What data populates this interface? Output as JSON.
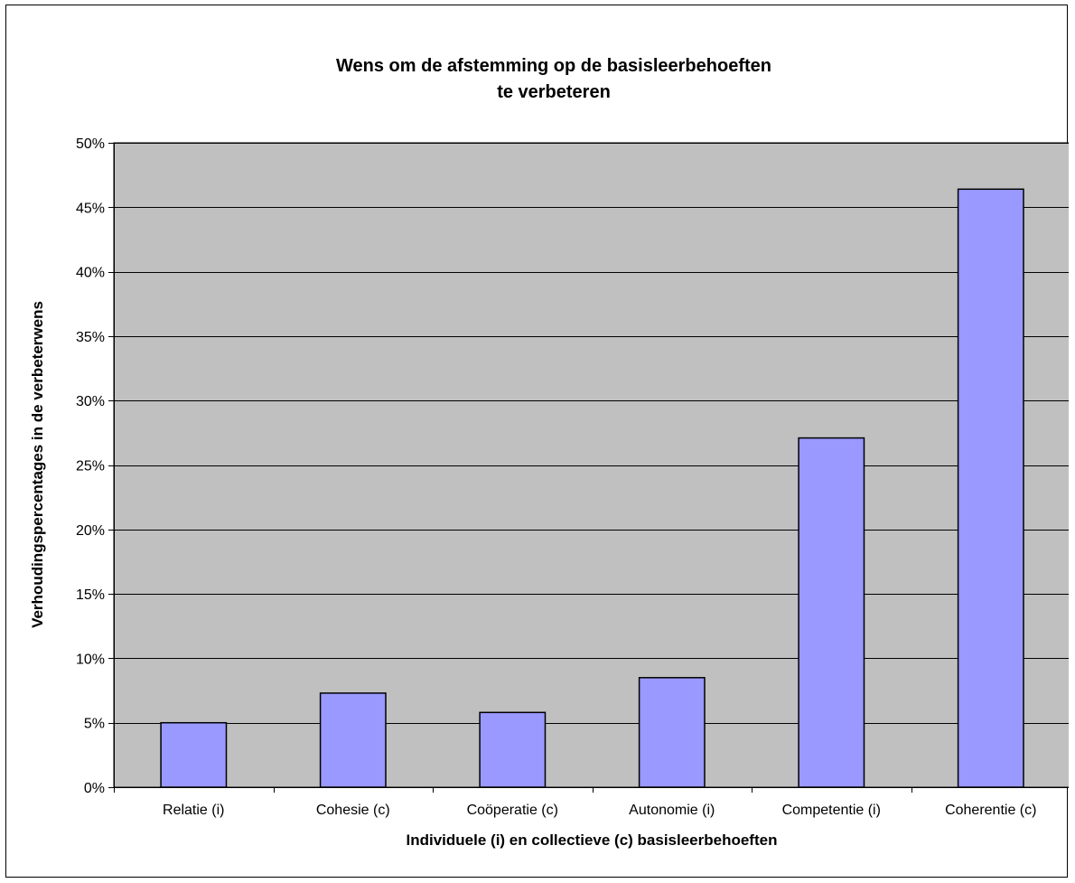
{
  "chart_data": {
    "type": "bar",
    "title_lines": [
      "Wens om de afstemming op de basisleerbehoeften",
      "te verbeteren"
    ],
    "xlabel": "Individuele (i) en collectieve (c) basisleerbehoeften",
    "ylabel": "Verhoudingspercentages in de verbeterwens",
    "categories": [
      "Relatie (i)",
      "Cohesie (c)",
      "Coöperatie (c)",
      "Autonomie (i)",
      "Competentie (i)",
      "Coherentie (c)"
    ],
    "values": [
      5.0,
      7.3,
      5.8,
      8.5,
      27.1,
      46.4
    ],
    "value_unit": "%",
    "ylim": [
      0,
      50
    ],
    "yticks": [
      0,
      5,
      10,
      15,
      20,
      25,
      30,
      35,
      40,
      45,
      50
    ],
    "ytick_labels": [
      "0%",
      "5%",
      "10%",
      "15%",
      "20%",
      "25%",
      "30%",
      "35%",
      "40%",
      "45%",
      "50%"
    ],
    "grid": true,
    "legend": "none",
    "colors": {
      "bar_fill": "#9999ff",
      "bar_stroke": "#000000",
      "plot_background": "#c0c0c0",
      "gridline": "#000000"
    }
  }
}
